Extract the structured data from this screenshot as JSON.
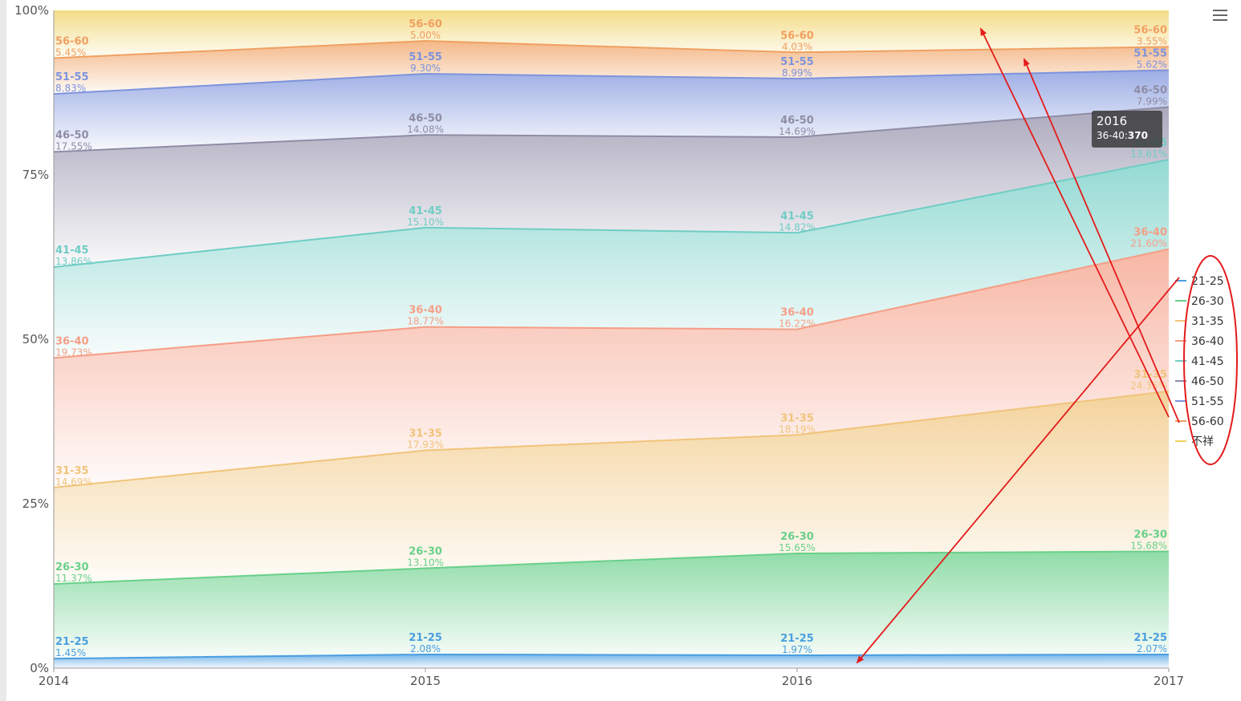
{
  "chart_data": {
    "type": "area",
    "stacked_percent": true,
    "categories": [
      "2014",
      "2015",
      "2016",
      "2017"
    ],
    "yticks": [
      "0%",
      "25%",
      "50%",
      "75%",
      "100%"
    ],
    "series": [
      {
        "name": "21-25",
        "color": "#4a9ee0",
        "values": [
          1.45,
          2.08,
          1.97,
          2.07
        ]
      },
      {
        "name": "26-30",
        "color": "#69d08a",
        "values": [
          11.37,
          13.1,
          15.65,
          15.68
        ]
      },
      {
        "name": "31-35",
        "color": "#f0c47a",
        "values": [
          14.69,
          17.93,
          18.19,
          24.35
        ]
      },
      {
        "name": "36-40",
        "color": "#f59e86",
        "values": [
          19.73,
          18.77,
          16.22,
          21.6
        ]
      },
      {
        "name": "41-45",
        "color": "#6fcdc4",
        "values": [
          13.86,
          15.1,
          14.82,
          13.61
        ]
      },
      {
        "name": "46-50",
        "color": "#8f8ca6",
        "values": [
          17.55,
          14.08,
          14.69,
          7.99
        ]
      },
      {
        "name": "51-55",
        "color": "#7d93dc",
        "values": [
          8.83,
          9.3,
          8.99,
          5.62
        ]
      },
      {
        "name": "56-60",
        "color": "#f0a060",
        "values": [
          5.45,
          5.0,
          4.03,
          3.55
        ]
      },
      {
        "name": "不祥",
        "color": "#f0d060",
        "values": [
          7.27,
          4.64,
          6.44,
          5.53
        ]
      }
    ],
    "legend_placement": "right"
  },
  "tooltip": {
    "year": "2016",
    "label": "36-40:",
    "value": "370"
  }
}
